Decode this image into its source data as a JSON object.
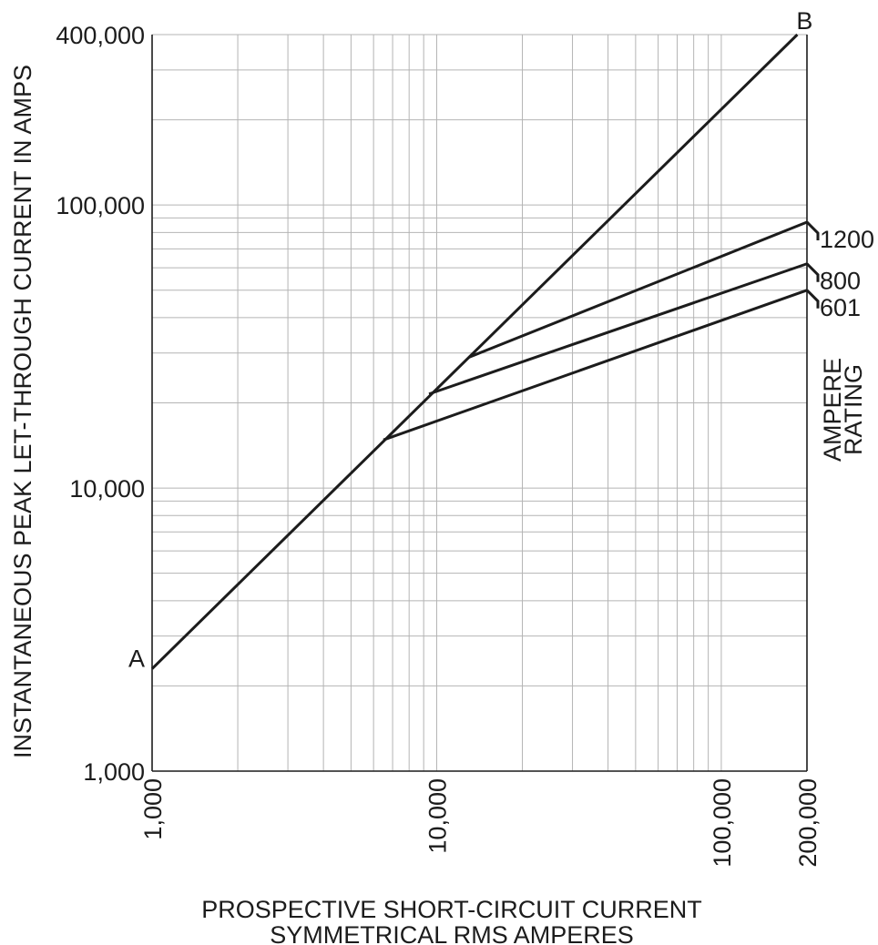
{
  "chart_data": {
    "type": "line",
    "x_scale": "log",
    "y_scale": "log",
    "xlim": [
      1000,
      200000
    ],
    "ylim": [
      1000,
      400000
    ],
    "grid": true,
    "xlabel": [
      "PROSPECTIVE SHORT-CIRCUIT CURRENT",
      "SYMMETRICAL RMS AMPERES"
    ],
    "ylabel": "INSTANTANEOUS PEAK LET-THROUGH CURRENT IN AMPS",
    "x_ticks": [
      {
        "value": 1000,
        "label": "1,000"
      },
      {
        "value": 10000,
        "label": "10,000"
      },
      {
        "value": 100000,
        "label": "100,000"
      },
      {
        "value": 200000,
        "label": "200,000"
      }
    ],
    "y_ticks": [
      {
        "value": 1000,
        "label": "1,000"
      },
      {
        "value": 10000,
        "label": "10,000"
      },
      {
        "value": 100000,
        "label": "100,000"
      },
      {
        "value": 400000,
        "label": "400,000"
      }
    ],
    "reference_line": {
      "points": [
        [
          1000,
          2300
        ],
        [
          185000,
          400000
        ]
      ],
      "start_label": "A",
      "end_label": "B"
    },
    "legend_title": [
      "AMPERE",
      "RATING"
    ],
    "series": [
      {
        "name": "1200",
        "points": [
          [
            13000,
            29000
          ],
          [
            200000,
            87000
          ]
        ]
      },
      {
        "name": "800",
        "points": [
          [
            9400,
            21500
          ],
          [
            200000,
            62000
          ]
        ]
      },
      {
        "name": "601",
        "points": [
          [
            6500,
            14800
          ],
          [
            200000,
            50000
          ]
        ]
      }
    ]
  }
}
